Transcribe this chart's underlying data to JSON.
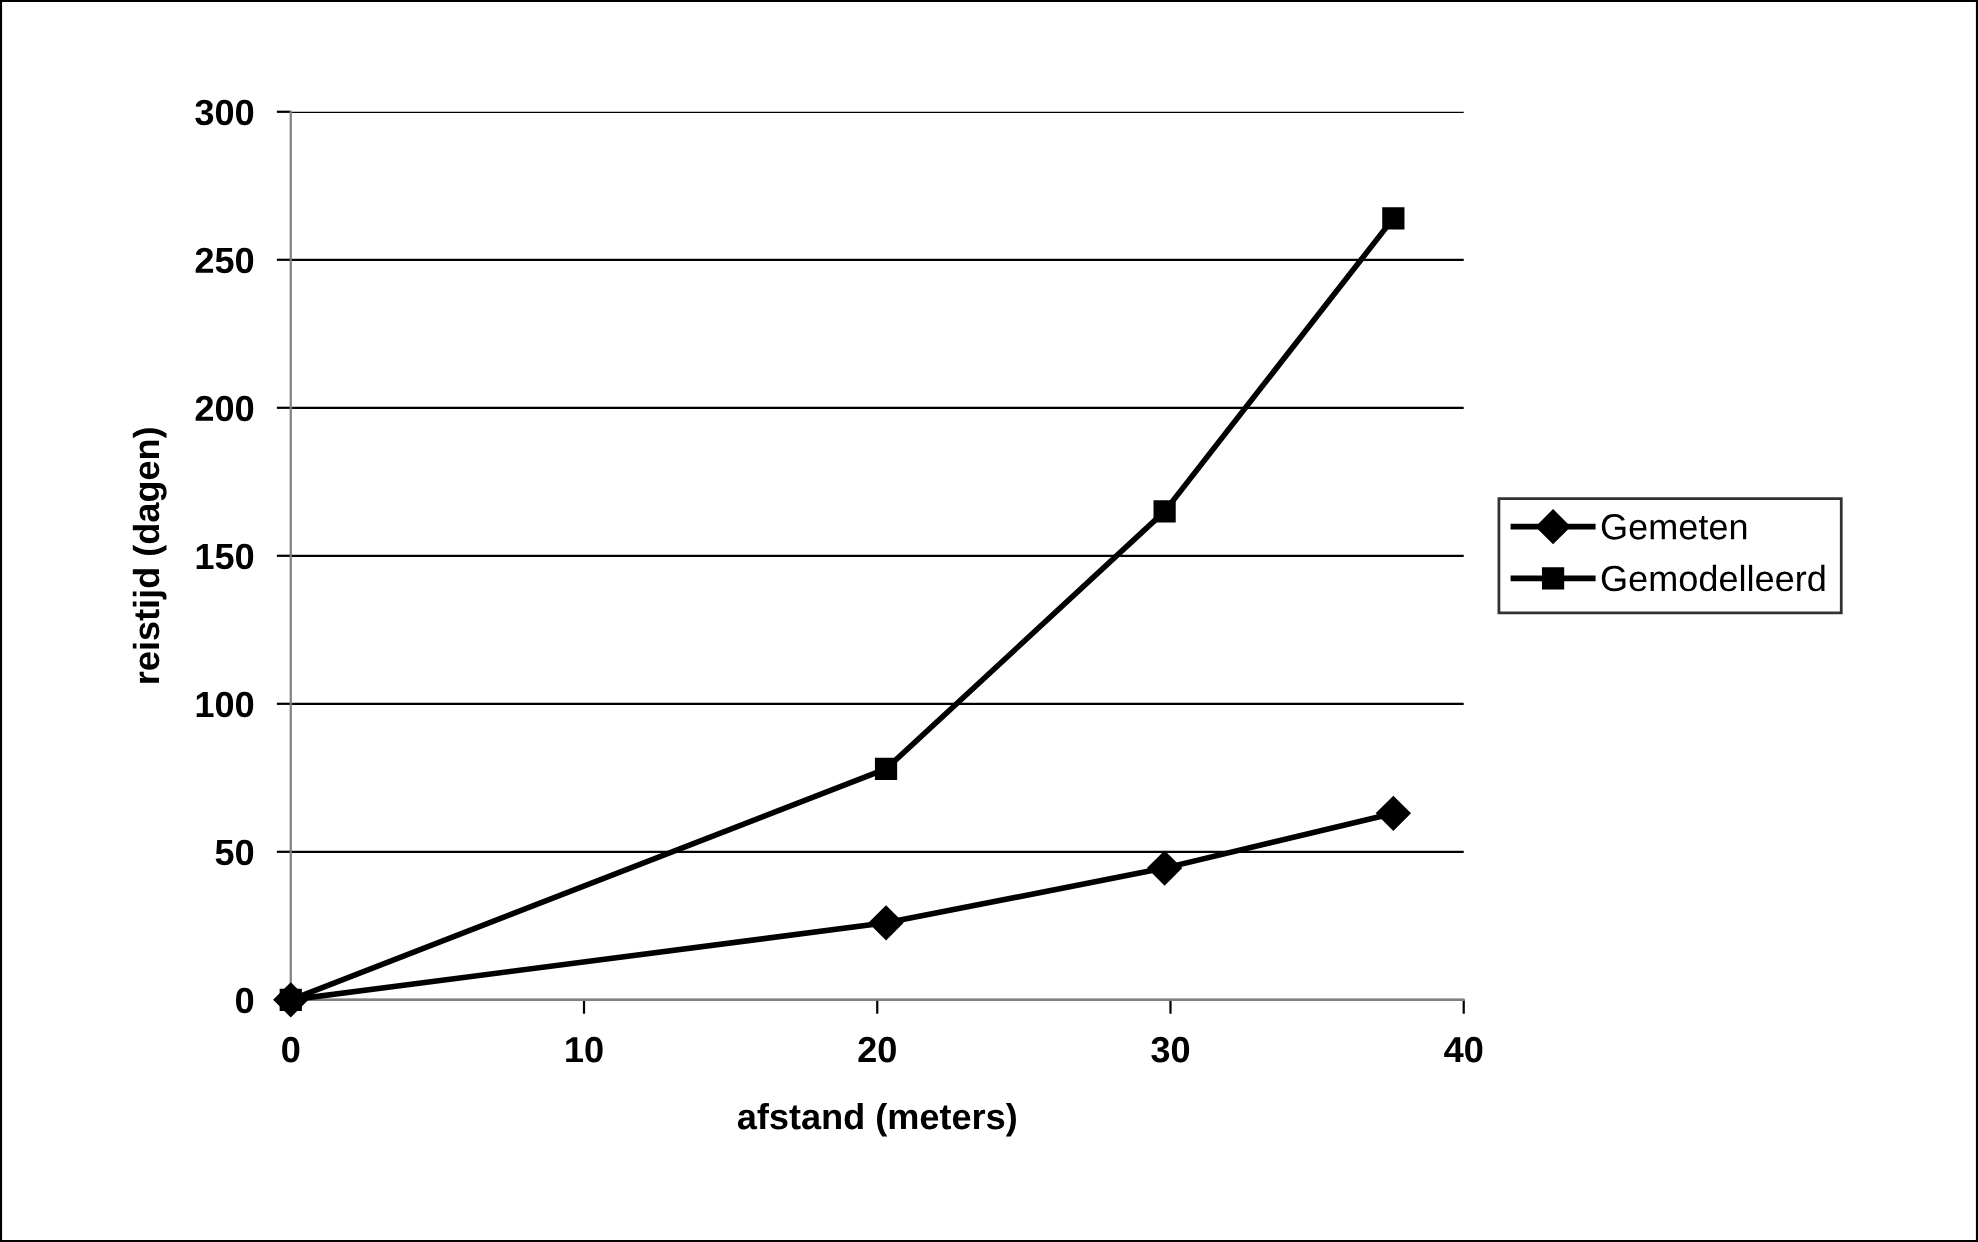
{
  "chart_data": {
    "type": "line",
    "xlabel": "afstand (meters)",
    "ylabel": "reistijd (dagen)",
    "xlim": [
      0,
      40
    ],
    "xticks": [
      0,
      10,
      20,
      30,
      40
    ],
    "ylim": [
      0,
      300
    ],
    "yticks": [
      0,
      50,
      100,
      150,
      200,
      250,
      300
    ],
    "grid": "y",
    "legend": "right",
    "line_style": "solid",
    "series": [
      {
        "name": "Gemeten",
        "color": "#000000",
        "marker": "diamond",
        "x": [
          0,
          20.3,
          29.8,
          37.6
        ],
        "values": [
          0,
          26,
          44.5,
          63
        ]
      },
      {
        "name": "Gemodelleerd",
        "color": "#000000",
        "marker": "square",
        "x": [
          0,
          20.3,
          29.8,
          37.6
        ],
        "values": [
          0,
          78,
          165,
          264
        ]
      }
    ]
  }
}
